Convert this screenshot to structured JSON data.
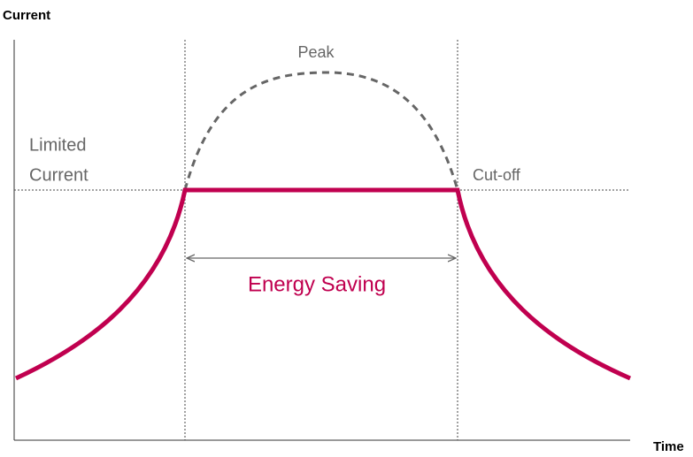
{
  "axes": {
    "y_label": "Current",
    "x_label": "Time"
  },
  "annotations": {
    "peak": "Peak",
    "limited": [
      "Limited",
      "Current"
    ],
    "cutoff": "Cut-off",
    "saving": "Energy Saving"
  }
}
